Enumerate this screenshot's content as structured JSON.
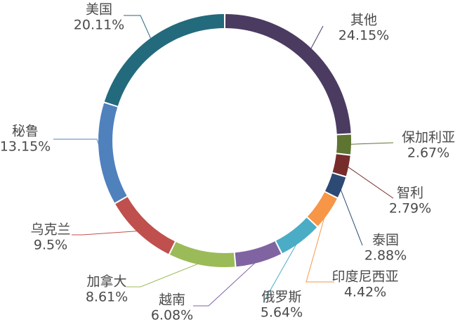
{
  "chart_data": {
    "type": "pie",
    "variant": "donut",
    "start_angle_deg": 0,
    "direction": "clockwise",
    "legend": "none",
    "slices": [
      {
        "label": "其他",
        "value": 24.15,
        "value_label": "24.15%",
        "color": "#4B3B61"
      },
      {
        "label": "保加利亚",
        "value": 2.67,
        "value_label": "2.67%",
        "color": "#5E7431"
      },
      {
        "label": "智利",
        "value": 2.79,
        "value_label": "2.79%",
        "color": "#772C2C"
      },
      {
        "label": "泰国",
        "value": 2.88,
        "value_label": "2.88%",
        "color": "#2C4A74"
      },
      {
        "label": "印度尼西亚",
        "value": 4.42,
        "value_label": "4.42%",
        "color": "#F79646"
      },
      {
        "label": "俄罗斯",
        "value": 5.64,
        "value_label": "5.64%",
        "color": "#4BACC6"
      },
      {
        "label": "越南",
        "value": 6.08,
        "value_label": "6.08%",
        "color": "#8064A2"
      },
      {
        "label": "加拿大",
        "value": 8.61,
        "value_label": "8.61%",
        "color": "#9BBB59"
      },
      {
        "label": "乌克兰",
        "value": 9.5,
        "value_label": "9.5%",
        "color": "#C0504D"
      },
      {
        "label": "秘鲁",
        "value": 13.15,
        "value_label": "13.15%",
        "color": "#4F81BD"
      },
      {
        "label": "美国",
        "value": 20.11,
        "value_label": "20.11%",
        "color": "#236A7C"
      }
    ]
  }
}
